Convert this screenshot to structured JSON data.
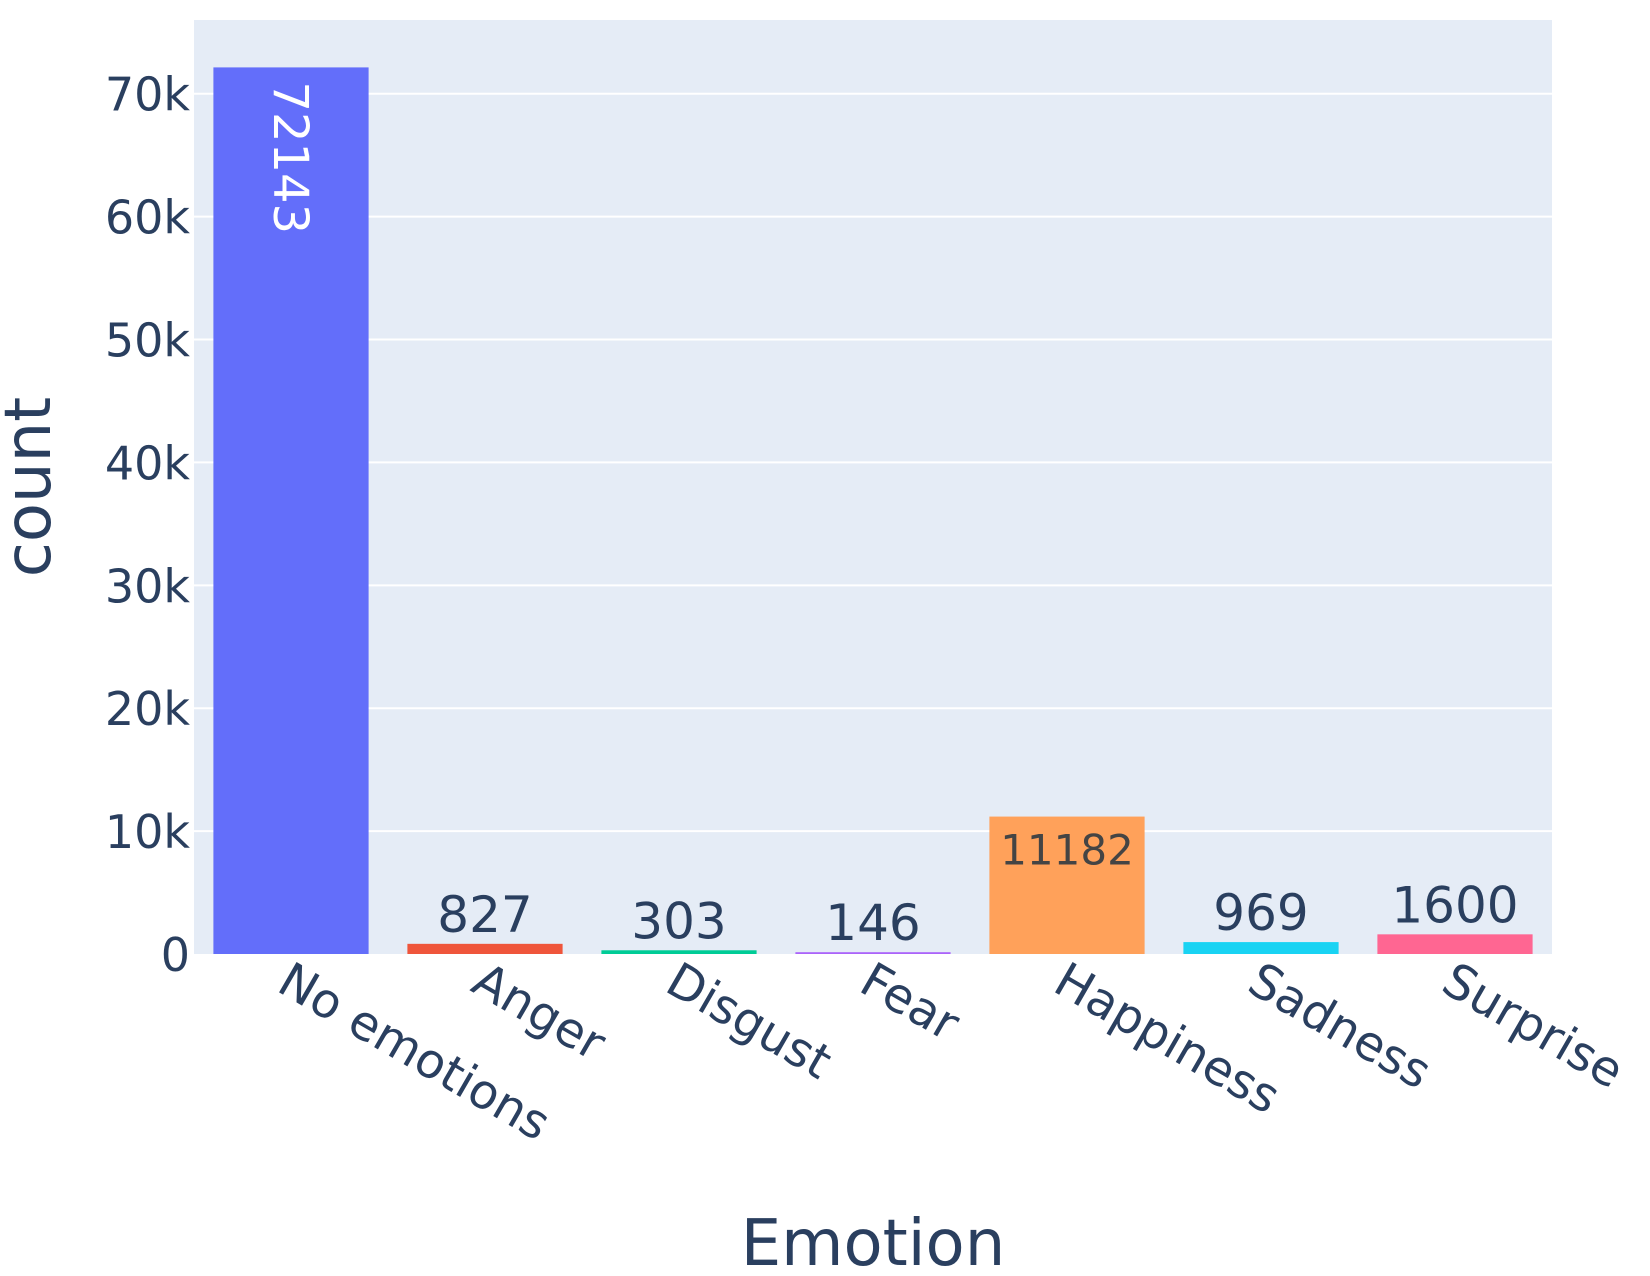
{
  "chart_data": {
    "type": "bar",
    "xlabel": "Emotion",
    "ylabel": "count",
    "categories": [
      "No emotions",
      "Anger",
      "Disgust",
      "Fear",
      "Happiness",
      "Sadness",
      "Surprise"
    ],
    "values": [
      72143,
      827,
      303,
      146,
      11182,
      969,
      1600
    ],
    "colors": [
      "#636efa",
      "#ef553b",
      "#00cc96",
      "#ab63fa",
      "#ffa15a",
      "#19d3f3",
      "#ff6692"
    ],
    "ylim": [
      0,
      76000
    ],
    "yticks": [
      0,
      10000,
      20000,
      30000,
      40000,
      50000,
      60000,
      70000
    ],
    "ytick_labels": [
      "0",
      "10k",
      "20k",
      "30k",
      "40k",
      "50k",
      "60k",
      "70k"
    ],
    "grid": true,
    "legend": false,
    "plot_background": "#e5ecf6",
    "text_color": "#2a3f5f"
  }
}
